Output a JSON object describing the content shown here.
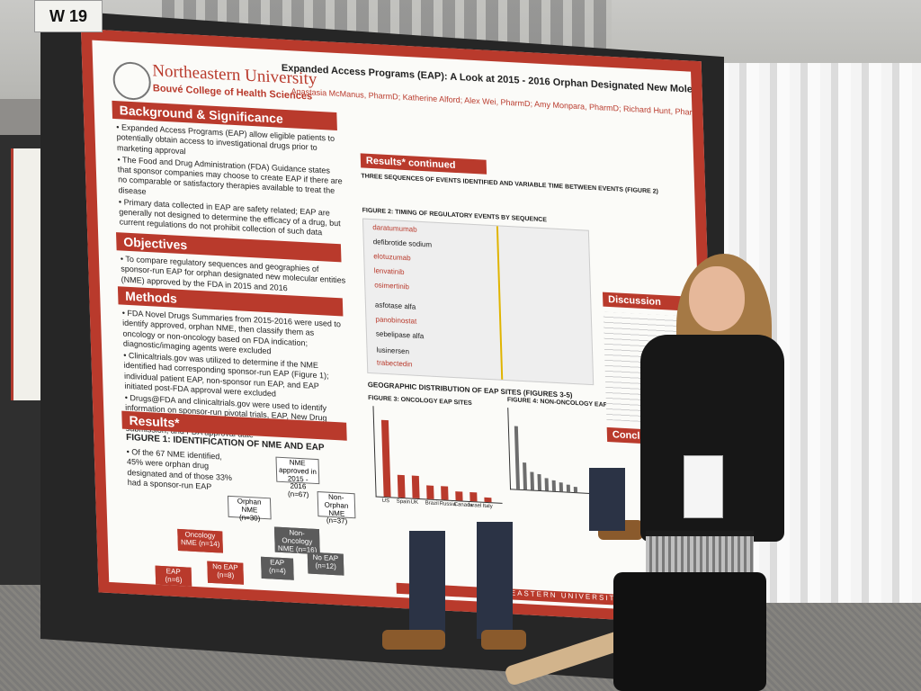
{
  "sign": {
    "label": "W 19"
  },
  "poster": {
    "university": "Northeastern University",
    "college": "Bouvé College of Health Sciences",
    "title": "Expanded Access Programs (EAP): A Look at 2015 - 2016 Orphan Designated New Molecular Entities",
    "authors": "Anastasia McManus, PharmD; Katherine Alford; Alex Wei, PharmD; Amy Monpara, PharmD; Richard Hunt, PharmD, MBA; Angela Y. Persaud, PharmD",
    "sections": {
      "background": "Background & Significance",
      "objectives": "Objectives",
      "methods": "Methods",
      "results": "Results* continued",
      "results_left": "Results*"
    },
    "background_bullets": [
      "Expanded Access Programs (EAP) allow eligible patients to potentially obtain access to investigational drugs prior to marketing approval",
      "The Food and Drug Administration (FDA) Guidance states that sponsor companies may choose to create EAP if there are no comparable or satisfactory therapies available to treat the disease",
      "Primary data collected in EAP are safety related; EAP are generally not designed to determine the efficacy of a drug, but current regulations do not prohibit collection of such data"
    ],
    "objectives_bullets": [
      "To compare regulatory sequences and geographies of sponsor-run EAP for orphan designated new molecular entities (NME) approved by the FDA in 2015 and 2016"
    ],
    "methods_bullets": [
      "FDA Novel Drugs Summaries from 2015-2016 were used to identify approved, orphan NME, then classify them as oncology or non-oncology based on FDA indication; diagnostic/imaging agents were excluded",
      "Clinicaltrials.gov was utilized to determine if the NME identified had corresponding sponsor-run EAP (Figure 1); individual patient EAP, non-sponsor run EAP, and EAP initiated post-FDA approval were excluded",
      "Drugs@FDA and clinicaltrials.gov were used to identify information on sponsor-run pivotal trials, EAP, New Drug Application (NDA) and/or Biologics License Application (BLA) submission, and FDA approval date"
    ],
    "figure1": {
      "title": "FIGURE 1: IDENTIFICATION OF NME AND EAP",
      "note": "Of the 67 NME identified, 45% were orphan drug designated and of those 33% had a sponsor-run EAP",
      "boxes": {
        "nme": "NME approved in 2015 - 2016 (n=67)",
        "orphan": "Orphan NME (n=30)",
        "non_orphan": "Non-Orphan NME (n=37)",
        "oncology": "Oncology NME (n=14)",
        "non_oncology": "Non-Oncology NME (n=16)",
        "eap_a": "EAP (n=6)",
        "no_eap_a": "No EAP (n=8)",
        "eap_b": "EAP (n=4)",
        "no_eap_b": "No EAP (n=12)"
      }
    },
    "sequences_title": "THREE SEQUENCES OF EVENTS IDENTIFIED AND VARIABLE TIME BETWEEN EVENTS (FIGURE 2)",
    "figure2_title": "FIGURE 2: TIMING OF REGULATORY EVENTS BY SEQUENCE",
    "drugs": [
      "daratumumab",
      "defibrotide sodium",
      "elotuzumab",
      "lenvatinib",
      "osimertinib",
      "asfotase alfa",
      "panobinostat",
      "sebelipase alfa",
      "lusinersen",
      "trabectedin"
    ],
    "geo_title": "GEOGRAPHIC DISTRIBUTION OF EAP SITES (FIGURES 3-5)",
    "figure3_title": "FIGURE 3: ONCOLOGY EAP SITES",
    "figure4_title": "FIGURE 4: NON-ONCOLOGY EAP SITES",
    "figure3_countries": [
      "US",
      "Spain",
      "UK",
      "Brazil",
      "Russia",
      "Canada",
      "Israel",
      "Italy"
    ],
    "figure3_values": [
      17,
      5,
      5,
      3,
      3,
      2,
      2,
      1
    ],
    "discussion": "Discussion",
    "conclusions": "Conclusions",
    "footer": "NORTHEASTERN UNIVERSITY"
  }
}
